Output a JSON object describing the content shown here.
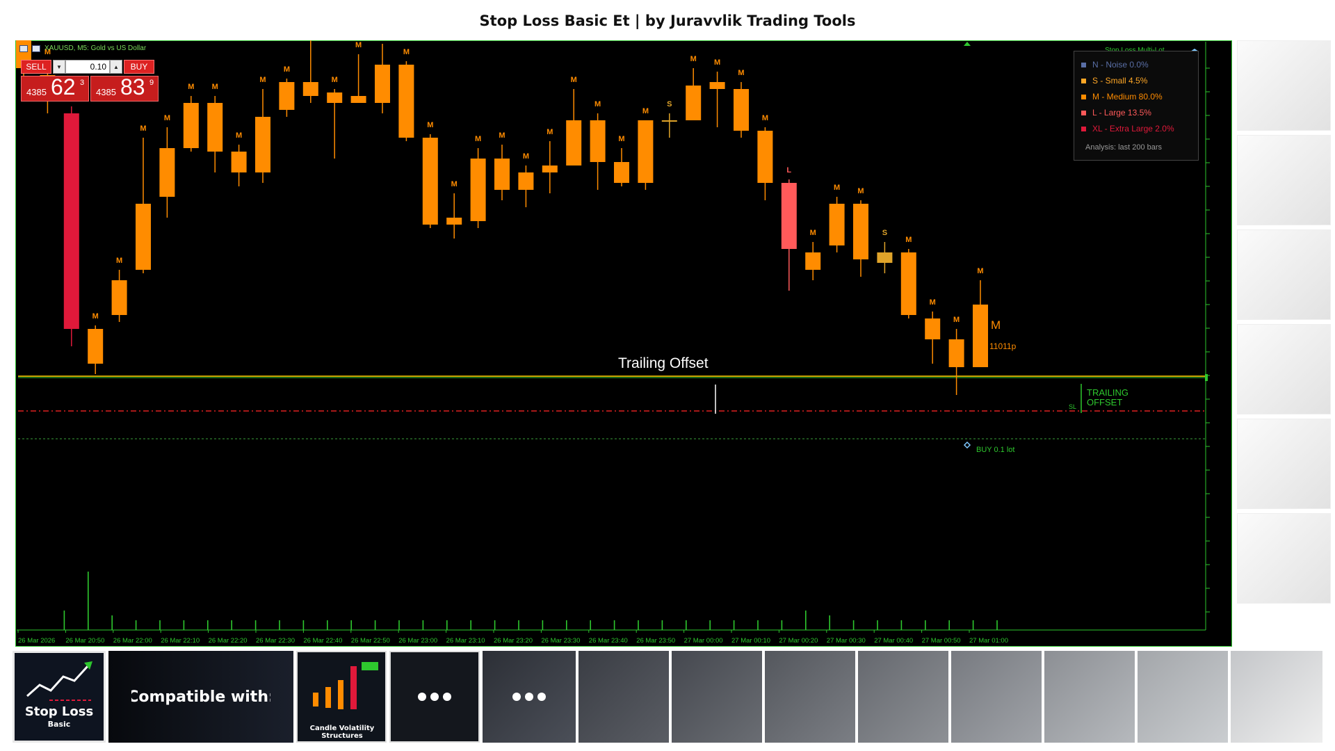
{
  "page": {
    "title": "Stop Loss Basic Et | by Juravvlik Trading Tools"
  },
  "chart": {
    "symbol_header": "XAUUSD, M5:  Gold vs US Dollar",
    "trade_panel": {
      "sell_label": "SELL",
      "buy_label": "BUY",
      "lot_value": "0.10",
      "sell_price_small": "4385",
      "sell_price_big": "62",
      "sell_price_sup": "3",
      "buy_price_small": "4385",
      "buy_price_big": "83",
      "buy_price_sup": "9"
    },
    "indicator_title": "Stop Loss Multi-Lot",
    "legend": {
      "items": [
        {
          "label": "N - Noise 0.0%",
          "color": "#5a6fa6"
        },
        {
          "label": "S - Small 4.5%",
          "color": "#ffa726"
        },
        {
          "label": "M - Medium 80.0%",
          "color": "#ff8c00"
        },
        {
          "label": "L - Large 13.5%",
          "color": "#ff5a5a"
        },
        {
          "label": "XL - Extra Large 2.0%",
          "color": "#e0193a"
        }
      ],
      "footer": "Analysis: last 200 bars"
    },
    "annotations": {
      "trailing_offset": "Trailing Offset",
      "trailing_offset_right_1": "TRAILING",
      "trailing_offset_right_2": "OFFSET",
      "sl_marker": "SL",
      "buy_order": "BUY 0.1 lot",
      "current_class": "M",
      "current_size": "11011p"
    },
    "x_labels": [
      "26 Mar 2026",
      "26 Mar 20:50",
      "26 Mar 22:00",
      "26 Mar 22:10",
      "26 Mar 22:20",
      "26 Mar 22:30",
      "26 Mar 22:40",
      "26 Mar 22:50",
      "26 Mar 23:00",
      "26 Mar 23:10",
      "26 Mar 23:20",
      "26 Mar 23:30",
      "26 Mar 23:40",
      "26 Mar 23:50",
      "27 Mar 00:00",
      "27 Mar 00:10",
      "27 Mar 00:20",
      "27 Mar 00:30",
      "27 Mar 00:40",
      "27 Mar 00:50",
      "27 Mar 01:00"
    ],
    "colors": {
      "M": "#ff8c00",
      "S": "#e0a42a",
      "L": "#ff5a5a",
      "XL": "#e0193a",
      "grid_green": "#2ec82e"
    }
  },
  "chart_data": {
    "type": "candlestick",
    "price_scale": "unlabeled",
    "candles": [
      {
        "o": 91,
        "c": 76,
        "h": 94,
        "l": 74,
        "cls": ""
      },
      {
        "o": 75,
        "c": 71.5,
        "h": 77,
        "l": 69.5,
        "cls": "M"
      },
      {
        "o": 69.5,
        "c": 38.5,
        "h": 70.5,
        "l": 36,
        "cls": "XL"
      },
      {
        "o": 33.5,
        "c": 38.5,
        "h": 39,
        "l": 32,
        "cls": "M"
      },
      {
        "o": 40.5,
        "c": 45.5,
        "h": 47,
        "l": 39.5,
        "cls": "M"
      },
      {
        "o": 47,
        "c": 56.5,
        "h": 66,
        "l": 46.5,
        "cls": "M"
      },
      {
        "o": 57.5,
        "c": 64.5,
        "h": 67.5,
        "l": 54.5,
        "cls": "M"
      },
      {
        "o": 64.5,
        "c": 71,
        "h": 72,
        "l": 64,
        "cls": "M"
      },
      {
        "o": 71,
        "c": 64,
        "h": 72,
        "l": 61,
        "cls": "M"
      },
      {
        "o": 64,
        "c": 61,
        "h": 65,
        "l": 59,
        "cls": "M"
      },
      {
        "o": 61,
        "c": 69,
        "h": 73,
        "l": 59.5,
        "cls": "M"
      },
      {
        "o": 70,
        "c": 74,
        "h": 74.5,
        "l": 69,
        "cls": "M"
      },
      {
        "o": 74,
        "c": 72,
        "h": 80,
        "l": 71,
        "cls": "M"
      },
      {
        "o": 72.5,
        "c": 71,
        "h": 73,
        "l": 63,
        "cls": "M"
      },
      {
        "o": 72,
        "c": 71,
        "h": 78,
        "l": 71,
        "cls": "M"
      },
      {
        "o": 71,
        "c": 76.5,
        "h": 79.5,
        "l": 69.5,
        "cls": "M"
      },
      {
        "o": 76.5,
        "c": 66,
        "h": 77,
        "l": 65.5,
        "cls": "M"
      },
      {
        "o": 66,
        "c": 53.5,
        "h": 66.5,
        "l": 53,
        "cls": "M"
      },
      {
        "o": 53.5,
        "c": 54.5,
        "h": 58,
        "l": 51.5,
        "cls": "M"
      },
      {
        "o": 54,
        "c": 63,
        "h": 64.5,
        "l": 53,
        "cls": "M"
      },
      {
        "o": 63,
        "c": 58.5,
        "h": 65,
        "l": 57,
        "cls": "M"
      },
      {
        "o": 58.5,
        "c": 61,
        "h": 62,
        "l": 56,
        "cls": "M"
      },
      {
        "o": 61,
        "c": 62,
        "h": 65.5,
        "l": 58,
        "cls": "M"
      },
      {
        "o": 62,
        "c": 68.5,
        "h": 73,
        "l": 62,
        "cls": "M"
      },
      {
        "o": 68.5,
        "c": 62.5,
        "h": 69.5,
        "l": 58.5,
        "cls": "M"
      },
      {
        "o": 62.5,
        "c": 59.5,
        "h": 64.5,
        "l": 59,
        "cls": "M"
      },
      {
        "o": 59.5,
        "c": 68.5,
        "h": 68.5,
        "l": 58.5,
        "cls": "M"
      },
      {
        "o": 68.5,
        "c": 68.5,
        "h": 69.5,
        "l": 66,
        "cls": "S"
      },
      {
        "o": 68.5,
        "c": 73.5,
        "h": 76,
        "l": 68.5,
        "cls": "M"
      },
      {
        "o": 73,
        "c": 74,
        "h": 75.5,
        "l": 67.5,
        "cls": "M"
      },
      {
        "o": 73,
        "c": 67,
        "h": 74,
        "l": 66,
        "cls": "M"
      },
      {
        "o": 67,
        "c": 59.5,
        "h": 67.5,
        "l": 57,
        "cls": "M"
      },
      {
        "o": 59.5,
        "c": 50,
        "h": 60,
        "l": 44,
        "cls": "L"
      },
      {
        "o": 49.5,
        "c": 47,
        "h": 51,
        "l": 45.5,
        "cls": "M"
      },
      {
        "o": 50.5,
        "c": 56.5,
        "h": 57.5,
        "l": 49.5,
        "cls": "M"
      },
      {
        "o": 56.5,
        "c": 48.5,
        "h": 57,
        "l": 46,
        "cls": "M"
      },
      {
        "o": 49.5,
        "c": 48,
        "h": 51,
        "l": 46.5,
        "cls": "S"
      },
      {
        "o": 49.5,
        "c": 40.5,
        "h": 50,
        "l": 40,
        "cls": "M"
      },
      {
        "o": 40,
        "c": 37,
        "h": 41,
        "l": 33.5,
        "cls": "M"
      },
      {
        "o": 37,
        "c": 33,
        "h": 38.5,
        "l": 29,
        "cls": "M"
      },
      {
        "o": 33,
        "c": 42,
        "h": 45.5,
        "l": 33,
        "cls": "M"
      }
    ],
    "volumes": [
      0,
      4,
      12,
      3,
      2,
      2,
      2,
      2,
      2,
      2,
      2,
      2,
      2,
      2,
      2,
      2,
      2,
      2,
      2,
      2,
      2,
      2,
      2,
      2,
      2,
      2,
      2,
      2,
      2,
      2,
      2,
      2,
      4,
      3,
      2,
      2,
      2,
      2,
      2,
      2,
      2
    ]
  }
}
